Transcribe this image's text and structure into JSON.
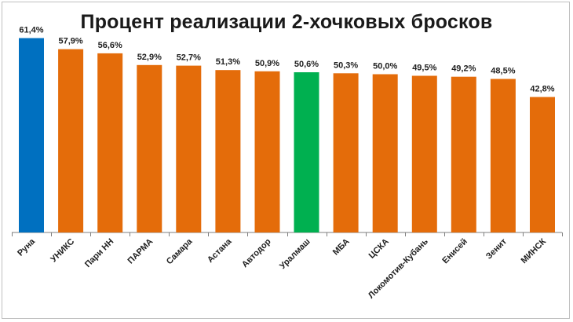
{
  "chart_data": {
    "type": "bar",
    "title": "Процент реализации 2-хочковых бросков",
    "xlabel": "",
    "ylabel": "",
    "ylim": [
      0,
      65
    ],
    "grid": false,
    "legend": "none",
    "categories": [
      "Руна",
      "УНИКС",
      "Пари НН",
      "ПАРМА",
      "Самара",
      "Астана",
      "Автодор",
      "Уралмаш",
      "МБА",
      "ЦСКА",
      "Локомотив-Кубань",
      "Енисей",
      "Зенит",
      "МИНСК"
    ],
    "values": [
      61.4,
      57.9,
      56.6,
      52.9,
      52.7,
      51.3,
      50.9,
      50.6,
      50.3,
      50.0,
      49.5,
      49.2,
      48.5,
      42.8
    ],
    "value_labels": [
      "61,4%",
      "57,9%",
      "56,6%",
      "52,9%",
      "52,7%",
      "51,3%",
      "50,9%",
      "50,6%",
      "50,3%",
      "50,0%",
      "49,5%",
      "49,2%",
      "48,5%",
      "42,8%"
    ],
    "bar_colors": [
      "#0070C0",
      "#E46C0A",
      "#E46C0A",
      "#E46C0A",
      "#E46C0A",
      "#E46C0A",
      "#E46C0A",
      "#00B050",
      "#E46C0A",
      "#E46C0A",
      "#E46C0A",
      "#E46C0A",
      "#E46C0A",
      "#E46C0A"
    ],
    "axis_color": "#7f7f7f"
  }
}
